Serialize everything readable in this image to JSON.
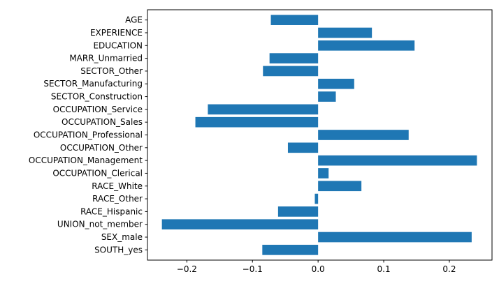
{
  "chart_data": {
    "type": "bar",
    "orientation": "horizontal",
    "categories": [
      "SOUTH_yes",
      "SEX_male",
      "UNION_not_member",
      "RACE_Hispanic",
      "RACE_Other",
      "RACE_White",
      "OCCUPATION_Clerical",
      "OCCUPATION_Management",
      "OCCUPATION_Other",
      "OCCUPATION_Professional",
      "OCCUPATION_Sales",
      "OCCUPATION_Service",
      "SECTOR_Construction",
      "SECTOR_Manufacturing",
      "SECTOR_Other",
      "MARR_Unmarried",
      "EDUCATION",
      "EXPERIENCE",
      "AGE"
    ],
    "values": [
      -0.085,
      0.234,
      -0.238,
      -0.061,
      -0.005,
      0.066,
      0.016,
      0.242,
      -0.046,
      0.138,
      -0.187,
      -0.168,
      0.027,
      0.055,
      -0.084,
      -0.074,
      0.147,
      0.082,
      -0.072
    ],
    "bar_color": "#1f77b4",
    "xlim": [
      -0.26,
      0.265
    ],
    "xticks": [
      -0.2,
      -0.1,
      0.0,
      0.1,
      0.2
    ],
    "xtick_labels": [
      "−0.2",
      "−0.1",
      "0.0",
      "0.1",
      "0.2"
    ],
    "title": "",
    "xlabel": "",
    "ylabel": "",
    "grid": false,
    "legend": "none"
  }
}
